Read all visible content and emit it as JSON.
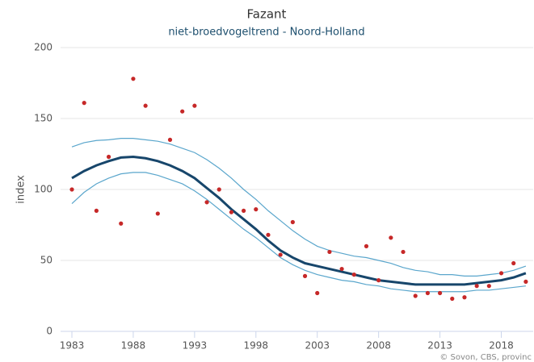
{
  "chart_data": {
    "type": "scatter-trend",
    "title": "Fazant",
    "subtitle": "niet-broedvogeltrend - Noord-Holland",
    "y_label": "index",
    "credit": "© Sovon, CBS, provinc",
    "x": [
      1983,
      1984,
      1985,
      1986,
      1987,
      1988,
      1989,
      1990,
      1991,
      1992,
      1993,
      1994,
      1995,
      1996,
      1997,
      1998,
      1999,
      2000,
      2001,
      2002,
      2003,
      2004,
      2005,
      2006,
      2007,
      2008,
      2009,
      2010,
      2011,
      2012,
      2013,
      2014,
      2015,
      2016,
      2017,
      2018,
      2019,
      2020
    ],
    "series": [
      {
        "kind": "points",
        "color": "#c62828",
        "values": [
          100,
          161,
          85,
          123,
          76,
          178,
          159,
          83,
          135,
          155,
          159,
          91,
          100,
          84,
          85,
          86,
          68,
          54,
          77,
          39,
          27,
          56,
          44,
          40,
          60,
          36,
          66,
          56,
          25,
          27,
          27,
          23,
          24,
          32,
          32,
          41,
          48,
          35
        ]
      },
      {
        "kind": "trend",
        "color": "#17466b",
        "values": [
          108,
          113,
          117,
          120,
          122.5,
          123,
          122,
          120,
          117,
          113,
          108,
          101,
          94,
          86,
          79,
          72,
          64,
          57,
          52,
          48,
          46,
          44,
          42,
          40,
          38,
          36,
          35,
          34,
          33,
          33,
          33,
          33,
          33,
          34,
          35,
          36,
          38,
          41
        ]
      },
      {
        "kind": "band",
        "color": "#5aa6cc",
        "values": [
          130,
          133,
          134.5,
          135,
          136,
          136,
          135,
          134,
          132,
          129,
          126,
          121,
          115,
          108,
          100,
          93,
          85,
          78,
          71,
          65,
          60,
          57,
          55,
          53,
          52,
          50,
          48,
          45,
          43,
          42,
          40,
          40,
          39,
          39,
          40,
          41,
          43,
          46
        ]
      },
      {
        "kind": "band",
        "color": "#5aa6cc",
        "values": [
          90,
          98,
          104,
          108,
          111,
          112,
          112,
          110,
          107,
          104,
          99,
          93,
          86,
          79,
          72,
          66,
          59,
          52,
          47,
          43,
          40,
          38,
          36,
          35,
          33,
          32,
          30,
          29,
          28,
          28,
          28,
          28,
          28,
          29,
          29,
          30,
          31,
          32
        ]
      }
    ],
    "xlim": [
      1983,
      2020.6
    ],
    "ylim": [
      0,
      200
    ],
    "xticks": [
      1983,
      1988,
      1993,
      1998,
      2003,
      2008,
      2013,
      2018
    ],
    "yticks": [
      0,
      50,
      100,
      150,
      200
    ],
    "grid": true
  }
}
